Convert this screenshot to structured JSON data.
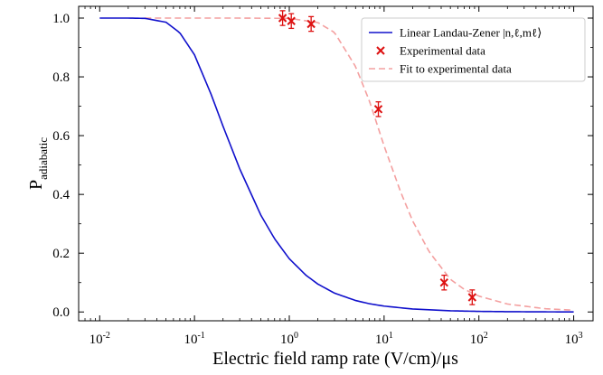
{
  "chart_data": {
    "type": "line",
    "xlabel": "Electric field ramp rate (V/cm)/μs",
    "ylabel_main": "P",
    "ylabel_sub": "adiabatic",
    "xscale": "log",
    "xlim": [
      0.006,
      1600
    ],
    "ylim": [
      -0.03,
      1.04
    ],
    "xticks": [
      {
        "value": 0.01,
        "base": "10",
        "exp": "-2"
      },
      {
        "value": 0.1,
        "base": "10",
        "exp": "-1"
      },
      {
        "value": 1,
        "base": "10",
        "exp": "0"
      },
      {
        "value": 10,
        "base": "10",
        "exp": "1"
      },
      {
        "value": 100,
        "base": "10",
        "exp": "2"
      },
      {
        "value": 1000,
        "base": "10",
        "exp": "3"
      }
    ],
    "yticks": [
      {
        "value": 0.0,
        "label": "0.0"
      },
      {
        "value": 0.2,
        "label": "0.2"
      },
      {
        "value": 0.4,
        "label": "0.4"
      },
      {
        "value": 0.6,
        "label": "0.6"
      },
      {
        "value": 0.8,
        "label": "0.8"
      },
      {
        "value": 1.0,
        "label": "1.0"
      }
    ],
    "grid": false,
    "legend_position": "top-right",
    "series": [
      {
        "name": "Linear Landau-Zener |n,ℓ,mℓ⟩",
        "style": "solid",
        "color": "#1010cc",
        "x": [
          0.01,
          0.02,
          0.03,
          0.05,
          0.07,
          0.1,
          0.15,
          0.2,
          0.3,
          0.5,
          0.7,
          1,
          1.5,
          2,
          3,
          5,
          7,
          10,
          20,
          50,
          100,
          200,
          500,
          1000
        ],
        "y": [
          1.0,
          1.0,
          0.999,
          0.986,
          0.95,
          0.875,
          0.74,
          0.632,
          0.487,
          0.33,
          0.249,
          0.181,
          0.125,
          0.095,
          0.064,
          0.039,
          0.028,
          0.02,
          0.01,
          0.004,
          0.002,
          0.001,
          0.0004,
          0.0002
        ]
      },
      {
        "name": "Experimental data",
        "style": "markers",
        "color": "#dd1111",
        "x": [
          0.85,
          1.05,
          1.7,
          8.7,
          43,
          85
        ],
        "y": [
          1.0,
          0.99,
          0.98,
          0.69,
          0.1,
          0.05
        ],
        "yerr": [
          0.025,
          0.025,
          0.025,
          0.025,
          0.025,
          0.025
        ]
      },
      {
        "name": "Fit to experimental data",
        "style": "dashed",
        "color": "#f4a0a0",
        "x": [
          0.03,
          0.3,
          1,
          2,
          3,
          5,
          7,
          10,
          15,
          20,
          30,
          50,
          70,
          100,
          200,
          500,
          1000
        ],
        "y": [
          1.0,
          1.0,
          0.999,
          0.985,
          0.951,
          0.835,
          0.718,
          0.565,
          0.407,
          0.31,
          0.204,
          0.111,
          0.077,
          0.054,
          0.027,
          0.011,
          0.006
        ]
      }
    ]
  }
}
